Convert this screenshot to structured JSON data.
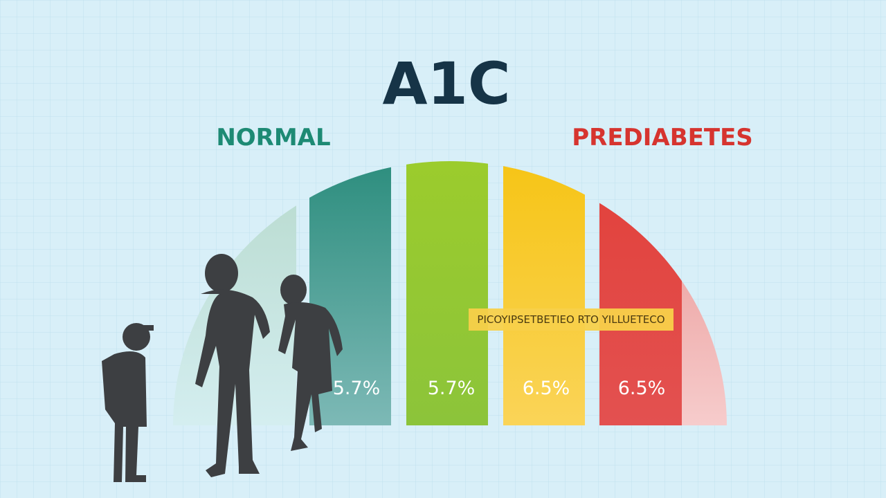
{
  "title": "A1C",
  "zones": {
    "normal": "NORMAL",
    "prediabetes": "PREDIABETES"
  },
  "banner": "PICOYIPSETBETIEO RTO YILLUETECO",
  "bars": [
    {
      "label": "5.7%"
    },
    {
      "label": "5.7%"
    },
    {
      "label": "6.5%"
    },
    {
      "label": "6.5%"
    }
  ]
}
